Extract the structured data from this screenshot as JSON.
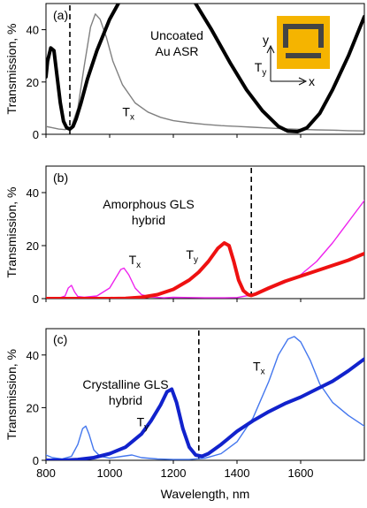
{
  "chart_data": [
    {
      "type": "line",
      "panel_label": "(a)",
      "annotation": [
        "Uncoated",
        "Au ASR"
      ],
      "ylabel": "Transmission, %",
      "xlim": [
        800,
        1800
      ],
      "ylim": [
        0,
        50
      ],
      "yticks": [
        0,
        20,
        40
      ],
      "marker_x": 875,
      "inset": {
        "y_label": "y",
        "x_label": "x",
        "accent": "#f5b400"
      },
      "series": [
        {
          "name": "Tx",
          "color": "#808080",
          "width": 1.4,
          "label_pos": [
            1040,
            7
          ],
          "x": [
            800,
            820,
            840,
            860,
            880,
            900,
            920,
            940,
            955,
            970,
            990,
            1010,
            1040,
            1080,
            1120,
            1160,
            1200,
            1250,
            1300,
            1350,
            1400,
            1450,
            1500,
            1550,
            1600,
            1650,
            1700,
            1750,
            1800
          ],
          "y": [
            3,
            2.5,
            2,
            1.8,
            3,
            10,
            26,
            41,
            46,
            44,
            37,
            28,
            19,
            12,
            8.5,
            6.5,
            5.2,
            4.4,
            3.8,
            3.3,
            3,
            2.7,
            2.4,
            2.1,
            1.9,
            1.7,
            1.6,
            1.4,
            1.3
          ]
        },
        {
          "name": "Ty",
          "color": "#000000",
          "width": 4,
          "label_pos": [
            1455,
            24
          ],
          "x": [
            800,
            805,
            815,
            825,
            835,
            845,
            855,
            865,
            875,
            885,
            895,
            910,
            930,
            960,
            1000,
            1050,
            1100,
            1150,
            1200,
            1260,
            1320,
            1380,
            1430,
            1480,
            1530,
            1560,
            1590,
            1620,
            1660,
            1700,
            1750,
            1800
          ],
          "y": [
            22,
            28,
            33,
            32,
            22,
            12,
            5,
            2.5,
            2,
            3,
            6,
            12,
            21,
            32,
            44,
            55,
            62,
            63,
            60,
            52,
            40,
            27,
            17,
            9,
            3,
            1.2,
            1,
            2.5,
            8,
            17,
            30,
            45
          ]
        }
      ]
    },
    {
      "type": "line",
      "panel_label": "(b)",
      "annotation": [
        "Amorphous GLS",
        "hybrid"
      ],
      "ylabel": "Transmission, %",
      "xlim": [
        800,
        1800
      ],
      "ylim": [
        0,
        50
      ],
      "yticks": [
        0,
        20,
        40
      ],
      "marker_x": 1445,
      "series": [
        {
          "name": "Tx",
          "color": "#ee22ee",
          "width": 1.4,
          "label_pos": [
            1060,
            13
          ],
          "x": [
            800,
            840,
            860,
            870,
            880,
            890,
            900,
            920,
            960,
            1000,
            1020,
            1035,
            1045,
            1060,
            1080,
            1100,
            1130,
            1170,
            1200,
            1250,
            1300,
            1350,
            1400,
            1450,
            1500,
            1550,
            1600,
            1650,
            1700,
            1750,
            1800
          ],
          "y": [
            0,
            0.2,
            1,
            4,
            5,
            2.5,
            0.8,
            0.5,
            1,
            4,
            8,
            11,
            11.5,
            9,
            4,
            1.5,
            0.6,
            0.3,
            0.5,
            0.4,
            0.3,
            0.3,
            0.4,
            1.5,
            3.5,
            6,
            9,
            14,
            21,
            29,
            37
          ]
        },
        {
          "name": "Ty",
          "color": "#ee1111",
          "width": 4,
          "label_pos": [
            1240,
            15
          ],
          "x": [
            800,
            850,
            900,
            950,
            1000,
            1050,
            1100,
            1150,
            1200,
            1250,
            1280,
            1310,
            1340,
            1360,
            1375,
            1390,
            1405,
            1420,
            1435,
            1445,
            1460,
            1500,
            1550,
            1600,
            1650,
            1700,
            1750,
            1800
          ],
          "y": [
            0,
            0,
            0,
            0,
            0,
            0.1,
            0.5,
            1.5,
            3.5,
            7,
            10,
            14,
            19,
            21,
            20,
            14,
            7,
            3,
            1.5,
            1.2,
            1.8,
            4,
            6.5,
            8.5,
            10.5,
            12.5,
            14.5,
            17
          ]
        }
      ]
    },
    {
      "type": "line",
      "panel_label": "(c)",
      "annotation": [
        "Crystalline GLS",
        "hybrid"
      ],
      "ylabel": "Transmission, %",
      "xlabel": "Wavelength, nm",
      "xlim": [
        800,
        1800
      ],
      "ylim": [
        0,
        50
      ],
      "yticks": [
        0,
        20,
        40
      ],
      "xticks": [
        800,
        1000,
        1200,
        1400,
        1600
      ],
      "marker_x": 1280,
      "series": [
        {
          "name": "Tx",
          "color": "#4477ee",
          "width": 1.4,
          "label_pos": [
            1450,
            34
          ],
          "x": [
            800,
            820,
            850,
            880,
            900,
            915,
            925,
            935,
            950,
            970,
            1000,
            1040,
            1070,
            1100,
            1150,
            1200,
            1250,
            1300,
            1350,
            1400,
            1450,
            1500,
            1530,
            1560,
            1580,
            1600,
            1630,
            1660,
            1700,
            1750,
            1800
          ],
          "y": [
            2,
            1,
            0.5,
            1.5,
            6,
            12,
            13,
            10,
            4,
            1.5,
            0.8,
            1.5,
            2,
            1,
            0.5,
            0.3,
            0.3,
            0.8,
            2.5,
            7,
            16,
            30,
            40,
            46,
            47,
            45,
            38,
            29,
            22,
            17,
            13
          ]
        },
        {
          "name": "Ty",
          "color": "#1122cc",
          "width": 4,
          "label_pos": [
            1085,
            13
          ],
          "x": [
            800,
            850,
            900,
            950,
            1000,
            1050,
            1100,
            1130,
            1160,
            1180,
            1195,
            1210,
            1230,
            1250,
            1270,
            1290,
            1310,
            1350,
            1400,
            1450,
            1500,
            1550,
            1600,
            1650,
            1700,
            1750,
            1800
          ],
          "y": [
            0,
            0,
            0.3,
            1,
            2.5,
            5,
            10,
            15,
            21,
            26,
            27,
            22,
            12,
            5,
            2,
            1.5,
            2.5,
            6,
            11,
            15,
            18.5,
            21.5,
            24,
            27,
            30,
            34,
            38.5
          ]
        }
      ]
    }
  ]
}
